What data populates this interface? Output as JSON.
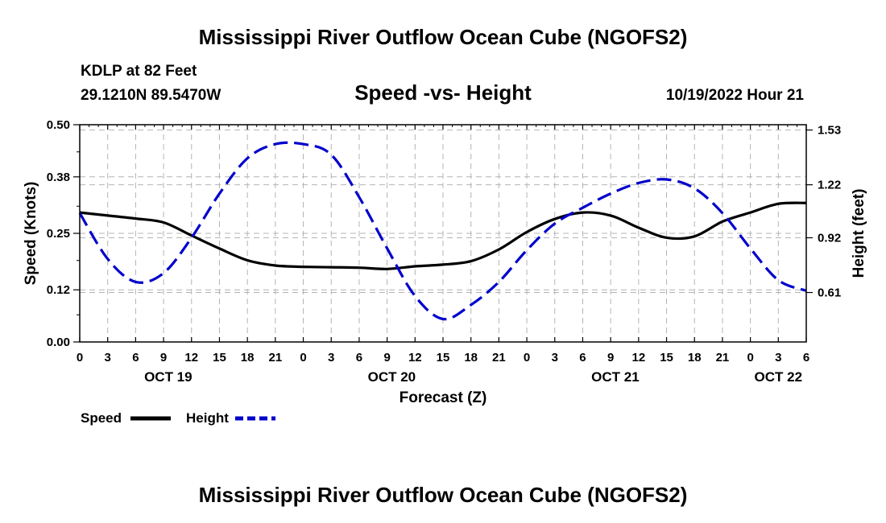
{
  "title": "Mississippi River Outflow Ocean Cube (NGOFS2)",
  "footer_title": "Mississippi River Outflow Ocean Cube (NGOFS2)",
  "station": {
    "name": "KDLP at 82 Feet",
    "coords": "29.1210N  89.5470W"
  },
  "datetime": "10/19/2022 Hour 21",
  "colors": {
    "speed": "#000000",
    "height": "#0000cc",
    "grid": "#b4b4b4"
  },
  "chart_data": {
    "type": "line",
    "title": "Speed -vs- Height",
    "xlabel": "Forecast (Z)",
    "ylabel": "Speed (Knots)",
    "y2label": "Height (feet)",
    "xlim": [
      0,
      78
    ],
    "ylim": [
      0,
      0.5
    ],
    "y2lim": [
      0.33,
      1.56
    ],
    "yticks": [
      "0.00",
      "0.12",
      "0.25",
      "0.38",
      "0.50"
    ],
    "y2ticks": [
      "0.61",
      "0.92",
      "1.22",
      "1.53"
    ],
    "xtick_labels": [
      "0",
      "3",
      "6",
      "9",
      "12",
      "15",
      "18",
      "21",
      "0",
      "3",
      "6",
      "9",
      "12",
      "15",
      "18",
      "21",
      "0",
      "3",
      "6",
      "9",
      "12",
      "15",
      "18",
      "21",
      "0",
      "3",
      "6"
    ],
    "date_labels": [
      {
        "label": "OCT 19",
        "hour": 9.5
      },
      {
        "label": "OCT 20",
        "hour": 33.5
      },
      {
        "label": "OCT 21",
        "hour": 57.5
      },
      {
        "label": "OCT 22",
        "hour": 75
      }
    ],
    "series": [
      {
        "name": "Speed",
        "axis": "left",
        "style": "solid",
        "x": [
          0,
          3,
          6,
          9,
          12,
          15,
          18,
          21,
          24,
          27,
          30,
          33,
          36,
          39,
          42,
          45,
          48,
          51,
          54,
          57,
          60,
          63,
          66,
          69,
          72,
          75,
          78
        ],
        "values": [
          0.298,
          0.291,
          0.284,
          0.275,
          0.245,
          0.215,
          0.188,
          0.176,
          0.173,
          0.172,
          0.171,
          0.168,
          0.174,
          0.178,
          0.186,
          0.213,
          0.253,
          0.283,
          0.298,
          0.291,
          0.263,
          0.24,
          0.243,
          0.277,
          0.298,
          0.318,
          0.32
        ]
      },
      {
        "name": "Height",
        "axis": "right",
        "style": "dashed",
        "x": [
          0,
          3,
          6,
          9,
          12,
          15,
          18,
          21,
          24,
          27,
          30,
          33,
          36,
          39,
          42,
          45,
          48,
          51,
          54,
          57,
          60,
          63,
          66,
          69,
          72,
          75,
          78
        ],
        "values": [
          1.06,
          0.8,
          0.67,
          0.72,
          0.92,
          1.17,
          1.37,
          1.45,
          1.45,
          1.39,
          1.15,
          0.86,
          0.59,
          0.46,
          0.54,
          0.67,
          0.85,
          1.0,
          1.09,
          1.17,
          1.23,
          1.25,
          1.2,
          1.06,
          0.86,
          0.68,
          0.62
        ]
      }
    ],
    "legend": [
      {
        "label": "Speed",
        "style": "solid"
      },
      {
        "label": "Height",
        "style": "dashed"
      }
    ]
  }
}
